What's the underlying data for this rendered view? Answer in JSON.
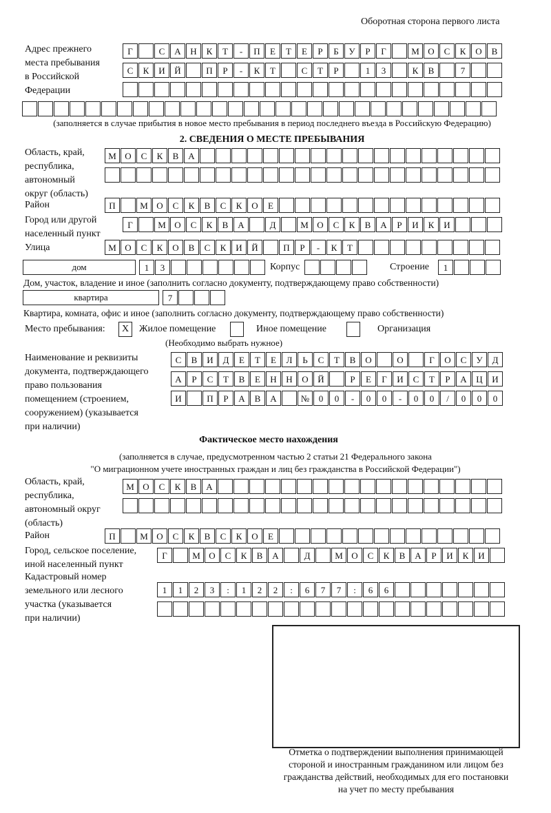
{
  "header": {
    "page_side": "Оборотная сторона первого листа"
  },
  "prev_address": {
    "label": [
      "Адрес прежнего",
      "места пребывания",
      "в Российской",
      "Федерации"
    ],
    "rows": [
      "Г САНКТ-ПЕТЕРБУРГ МОСКОВ",
      "СКИЙ ПР-КТ СТР 13 КВ 7",
      "",
      ""
    ],
    "note": "(заполняется в случае прибытия в новое место пребывания в период последнего въезда в Российскую Федерацию)"
  },
  "section2": {
    "title": "2. СВЕДЕНИЯ О МЕСТЕ ПРЕБЫВАНИЯ",
    "region_label": [
      "Область, край,",
      "республика,",
      "автономный",
      "округ (область)"
    ],
    "region_rows": [
      "МОСКВА",
      ""
    ],
    "district_label": "Район",
    "district": "П МОСКВСКОЕ",
    "city_label": [
      "Город или другой",
      "населенный пункт"
    ],
    "city": "Г МОСКВА Д МОСКВАРИКИ",
    "street_label": "Улица",
    "street": "МОСКОВСКИЙ ПР-КТ",
    "house_type": "дом",
    "house_number": "13",
    "korpus_label": "Корпус",
    "korpus": "",
    "building_label": "Строение",
    "building": "1",
    "house_note": "Дом, участок, владение и иное (заполнить согласно документу, подтверждающему право собственности)",
    "apt_type": "квартира",
    "apt_number": "7",
    "apt_note": "Квартира, комната, офис и иное (заполнить согласно документу, подтверждающему право собственности)",
    "stay_label": "Место пребывания:",
    "stay_options": [
      {
        "mark": "X",
        "label": "Жилое помещение"
      },
      {
        "mark": "",
        "label": "Иное помещение"
      },
      {
        "mark": "",
        "label": "Организация"
      }
    ],
    "stay_note": "(Необходимо выбрать нужное)",
    "doc_label": [
      "Наименование и реквизиты",
      "документа, подтверждающего",
      "право пользования",
      "помещением (строением,",
      "сооружением) (указывается",
      "при наличии)"
    ],
    "doc_rows": [
      "СВИДЕТЕЛЬСТВО О ГОСУД",
      "АРСТВЕННОЙ РЕГИСТРАЦИ",
      "И ПРАВА №00-00-00/000"
    ]
  },
  "actual": {
    "title": "Фактическое место нахождения",
    "note": [
      "(заполняется в случае, предусмотренном частью 2 статьи 21 Федерального закона",
      "\"О миграционном учете иностранных граждан и лиц без гражданства в Российской Федерации\")"
    ],
    "region_label": [
      "Область, край,",
      "республика,",
      "автономный округ",
      "(область)"
    ],
    "region_rows": [
      "МОСКВА",
      ""
    ],
    "district_label": "Район",
    "district": "П МОСКВСКОЕ",
    "city_label": [
      "Город, сельское поселение,",
      "иной населенный пункт"
    ],
    "city": "Г МОСКВА Д МОСКВАРИКИ",
    "cadastral_label": [
      "Кадастровый номер",
      "земельного или лесного",
      "участка (указывается",
      "при наличии)"
    ],
    "cadastral_rows": [
      "1123:122:677:66",
      ""
    ]
  },
  "stamp": {
    "caption": [
      "Отметка о подтверждении выполнения принимающей",
      "стороной и иностранным гражданином или лицом без",
      "гражданства действий, необходимых для его постановки",
      "на учет по месту пребывания"
    ]
  }
}
